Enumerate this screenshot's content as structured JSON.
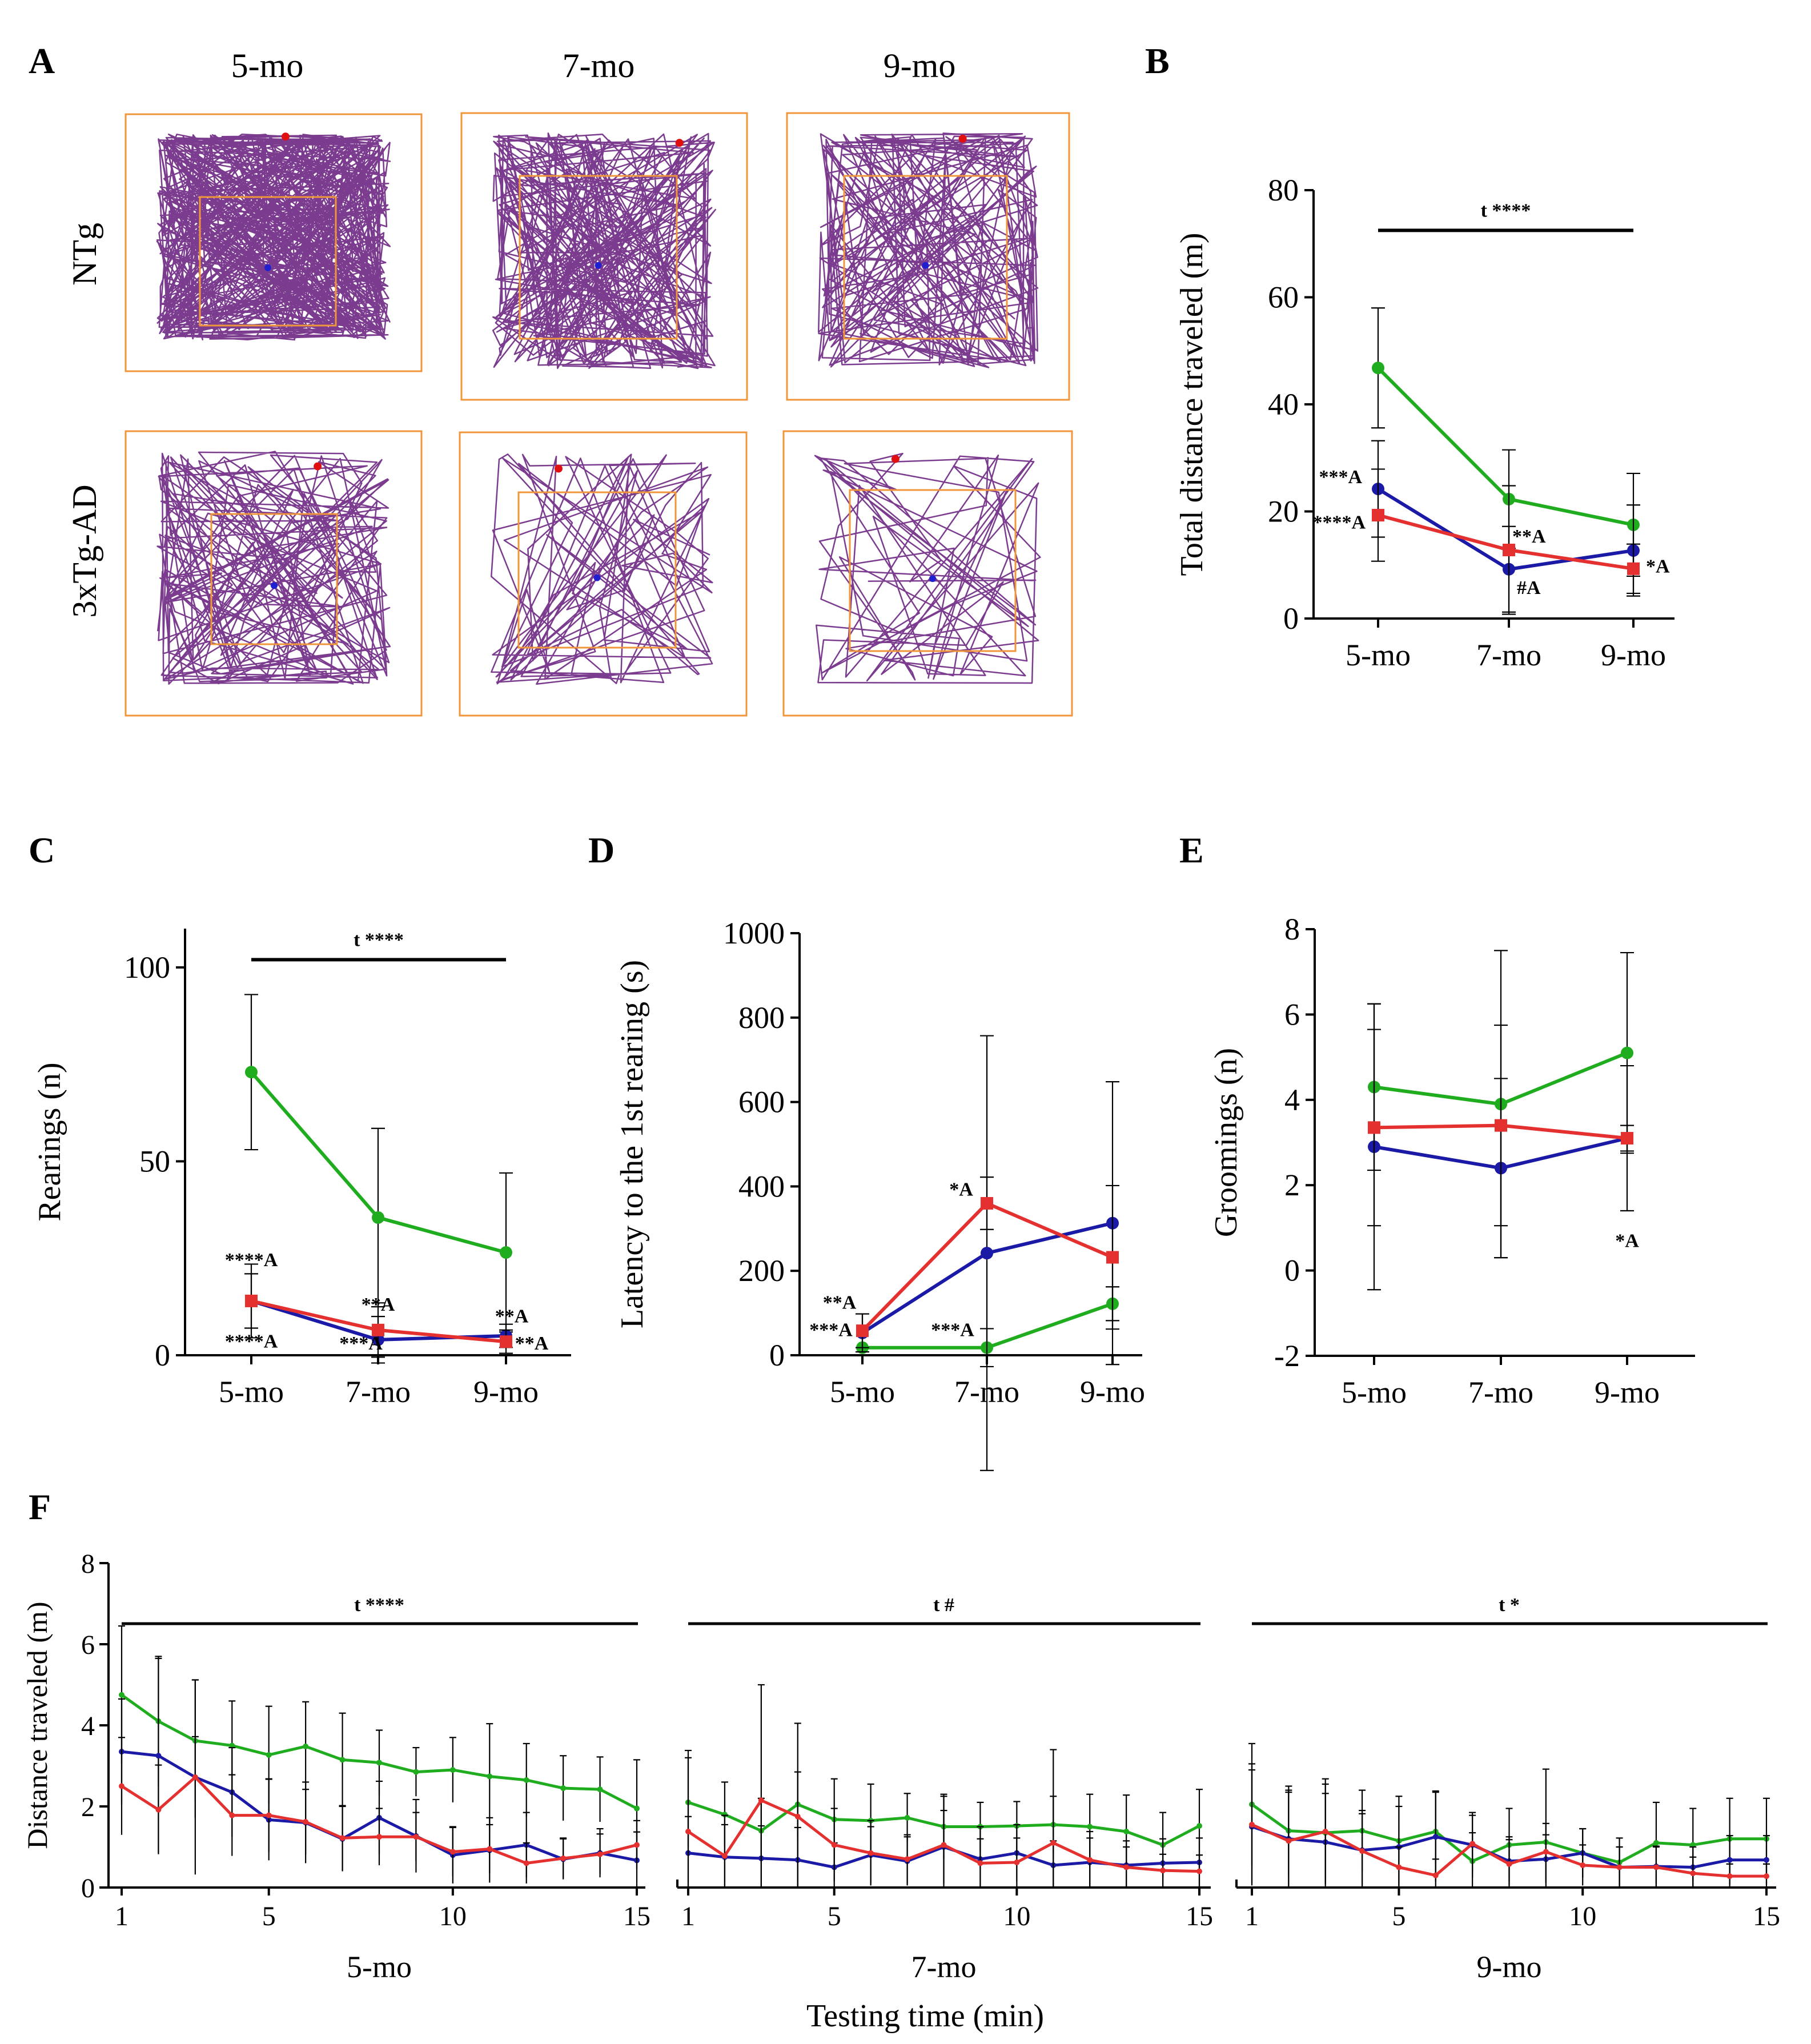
{
  "panel_labels": {
    "A": "A",
    "B": "B",
    "C": "C",
    "D": "D",
    "E": "E",
    "F": "F"
  },
  "colors": {
    "ntg": "#1fad1f",
    "blue_group": "#1a1aa6",
    "red_group": "#e53030",
    "track": "#7b3b8e",
    "arena": "#f0963a"
  },
  "panel_a": {
    "ages": [
      "5-mo",
      "7-mo",
      "9-mo"
    ],
    "groups": [
      "NTg",
      "3xTg-AD"
    ],
    "track_density": [
      [
        500,
        260,
        200
      ],
      [
        180,
        90,
        70
      ]
    ]
  },
  "chart_data": [
    {
      "id": "B",
      "type": "line",
      "title": "",
      "ylabel": "Total distance traveled (m)",
      "categories": [
        "5-mo",
        "7-mo",
        "9-mo"
      ],
      "ylim": [
        0,
        80
      ],
      "yticks": [
        "0",
        "20",
        "40",
        "60",
        "80"
      ],
      "series": [
        {
          "name": "NTg",
          "color": "#1fad1f",
          "marker": "circle",
          "values": [
            46.8,
            22.3,
            17.5
          ],
          "err": [
            11.2,
            9.2,
            9.6
          ]
        },
        {
          "name": "blue",
          "color": "#1a1aa6",
          "marker": "circle",
          "values": [
            24.2,
            9.2,
            12.7
          ],
          "err": [
            9.0,
            8.0,
            8.5
          ]
        },
        {
          "name": "red",
          "color": "#e53030",
          "marker": "square",
          "values": [
            19.3,
            12.8,
            9.3
          ],
          "err": [
            8.6,
            12.0,
            4.6
          ]
        }
      ],
      "bracket": {
        "label": "t ****",
        "from": 0,
        "to": 2,
        "y": 72.5
      },
      "annotations": [
        {
          "text": "***A",
          "cat": 0,
          "y": 25.3,
          "dx": -28,
          "anchor": "end"
        },
        {
          "text": "****A",
          "cat": 0,
          "y": 16.8,
          "dx": -22,
          "anchor": "end"
        },
        {
          "text": "**A",
          "cat": 1,
          "y": 14.2,
          "dx": 6,
          "anchor": "start"
        },
        {
          "text": "#A",
          "cat": 1,
          "y": 4.6,
          "dx": 14,
          "anchor": "start"
        },
        {
          "text": "*A",
          "cat": 2,
          "y": 8.6,
          "dx": 22,
          "anchor": "start"
        }
      ]
    },
    {
      "id": "C",
      "type": "line",
      "title": "",
      "ylabel": "Rearings (n)",
      "categories": [
        "5-mo",
        "7-mo",
        "9-mo"
      ],
      "ylim": [
        0,
        110
      ],
      "yticks": [
        "0",
        "50",
        "100"
      ],
      "series": [
        {
          "name": "NTg",
          "color": "#1fad1f",
          "marker": "circle",
          "values": [
            73,
            35.5,
            26.5
          ],
          "err": [
            20,
            23,
            20.5
          ]
        },
        {
          "name": "blue",
          "color": "#1a1aa6",
          "marker": "circle",
          "values": [
            14,
            4,
            5
          ],
          "err": [
            9.5,
            6,
            3
          ]
        },
        {
          "name": "red",
          "color": "#e53030",
          "marker": "square",
          "values": [
            14,
            6.5,
            3.5
          ],
          "err": [
            7,
            7,
            3
          ]
        }
      ],
      "bracket": {
        "label": "t ****",
        "from": 0,
        "to": 2,
        "y": 102
      },
      "annotations": [
        {
          "text": "****A",
          "cat": 0,
          "y": 23,
          "dx": 0,
          "anchor": "middle"
        },
        {
          "text": "****A",
          "cat": 0,
          "y": 2,
          "dx": 0,
          "anchor": "middle"
        },
        {
          "text": "**A",
          "cat": 1,
          "y": 11.5,
          "dx": 0,
          "anchor": "middle"
        },
        {
          "text": "***A",
          "cat": 1,
          "y": 1.5,
          "dx": -30,
          "anchor": "middle"
        },
        {
          "text": "**A",
          "cat": 2,
          "y": 8.5,
          "dx": 10,
          "anchor": "middle"
        },
        {
          "text": "**A",
          "cat": 2,
          "y": 1.5,
          "dx": 45,
          "anchor": "middle"
        }
      ]
    },
    {
      "id": "D",
      "type": "line",
      "title": "",
      "ylabel": "Latency to the 1st rearing (s)",
      "categories": [
        "5-mo",
        "7-mo",
        "9-mo"
      ],
      "ylim": [
        0,
        1000
      ],
      "yticks": [
        "0",
        "200",
        "400",
        "600",
        "800",
        "1000"
      ],
      "series": [
        {
          "name": "NTg",
          "color": "#1fad1f",
          "marker": "circle",
          "values": [
            18,
            18,
            122
          ],
          "err": [
            0,
            45,
            40
          ]
        },
        {
          "name": "blue",
          "color": "#1a1aa6",
          "marker": "circle",
          "values": [
            53,
            242,
            313
          ],
          "err": [
            45,
            515,
            335
          ]
        },
        {
          "name": "red",
          "color": "#e53030",
          "marker": "square",
          "values": [
            58,
            360,
            232
          ],
          "err": [
            40,
            62,
            170
          ]
        }
      ],
      "annotations": [
        {
          "text": "**A",
          "cat": 0,
          "y": 110,
          "dx": -40,
          "anchor": "middle"
        },
        {
          "text": "***A",
          "cat": 0,
          "y": 45,
          "dx": -55,
          "anchor": "middle"
        },
        {
          "text": "*A",
          "cat": 1,
          "y": 378,
          "dx": -45,
          "anchor": "middle"
        },
        {
          "text": "***A",
          "cat": 1,
          "y": 45,
          "dx": -60,
          "anchor": "middle"
        }
      ]
    },
    {
      "id": "E",
      "type": "line",
      "title": "",
      "ylabel": "Groomings (n)",
      "categories": [
        "5-mo",
        "7-mo",
        "9-mo"
      ],
      "ylim": [
        -2,
        8
      ],
      "yticks": [
        "-2",
        "0",
        "2",
        "4",
        "6",
        "8"
      ],
      "series": [
        {
          "name": "NTg",
          "color": "#1fad1f",
          "marker": "circle",
          "values": [
            4.3,
            3.9,
            5.1
          ],
          "err": [
            1.95,
            3.6,
            2.35
          ]
        },
        {
          "name": "blue",
          "color": "#1a1aa6",
          "marker": "circle",
          "values": [
            2.9,
            2.4,
            3.1
          ],
          "err": [
            3.35,
            2.1,
            1.7
          ]
        },
        {
          "name": "red",
          "color": "#e53030",
          "marker": "square",
          "values": [
            3.35,
            3.4,
            3.1
          ],
          "err": [
            2.3,
            2.35,
            0.3
          ]
        }
      ],
      "annotations": [
        {
          "text": "*A",
          "cat": 2,
          "y": 0.55,
          "dx": 0,
          "anchor": "middle"
        }
      ]
    },
    {
      "id": "F",
      "type": "line",
      "ylabel": "Distance traveled (m)",
      "xlabel": "Testing time (min)",
      "ylim": [
        0,
        8
      ],
      "yticks": [
        "0",
        "2",
        "4",
        "6",
        "8"
      ],
      "xticks": [
        "1",
        "5",
        "10",
        "15"
      ],
      "subplots": [
        {
          "title": "5-mo",
          "bracket_label": "t ****",
          "x": [
            1,
            2,
            3,
            4,
            5,
            6,
            7,
            8,
            9,
            10,
            11,
            12,
            13,
            14,
            15
          ],
          "series": [
            {
              "name": "NTg",
              "color": "#1fad1f",
              "values": [
                4.75,
                4.1,
                3.62,
                3.5,
                3.27,
                3.48,
                3.15,
                3.08,
                2.85,
                2.9,
                2.74,
                2.65,
                2.45,
                2.42,
                1.95
              ],
              "err": [
                1.7,
                1.6,
                1.5,
                1.1,
                1.2,
                1.1,
                1.15,
                0.8,
                0.6,
                0.8,
                1.3,
                0.9,
                0.8,
                0.8,
                1.2
              ]
            },
            {
              "name": "blue",
              "color": "#1a1aa6",
              "values": [
                3.35,
                3.25,
                2.72,
                2.35,
                1.67,
                1.6,
                1.2,
                1.72,
                1.27,
                0.8,
                0.92,
                1.05,
                0.7,
                0.85,
                0.67
              ],
              "err": [
                1.3,
                2.4,
                2.4,
                1.1,
                1.0,
                1.0,
                0.8,
                0.9,
                0.9,
                0.7,
                0.8,
                0.8,
                0.5,
                0.6,
                0.7
              ]
            },
            {
              "name": "red",
              "color": "#e53030",
              "values": [
                2.5,
                1.92,
                2.72,
                1.78,
                1.78,
                1.62,
                1.22,
                1.25,
                1.25,
                0.88,
                0.95,
                0.6,
                0.72,
                0.82,
                1.05
              ],
              "err": [
                1.2,
                1.1,
                1.0,
                1.0,
                0.9,
                0.8,
                0.8,
                0.7,
                0.6,
                0.6,
                0.6,
                0.5,
                0.5,
                0.5,
                0.6
              ]
            }
          ]
        },
        {
          "title": "7-mo",
          "bracket_label": "t #",
          "x": [
            1,
            2,
            3,
            4,
            5,
            6,
            7,
            8,
            9,
            10,
            11,
            12,
            13,
            14,
            15
          ],
          "series": [
            {
              "name": "NTg",
              "color": "#1fad1f",
              "values": [
                2.1,
                1.8,
                1.4,
                2.05,
                1.68,
                1.65,
                1.72,
                1.5,
                1.5,
                1.52,
                1.55,
                1.5,
                1.38,
                1.05,
                1.52
              ],
              "err": [
                1.1,
                0.8,
                0.8,
                0.8,
                1.0,
                0.9,
                0.6,
                0.8,
                0.6,
                0.6,
                0.7,
                0.8,
                0.9,
                0.8,
                0.9
              ]
            },
            {
              "name": "blue",
              "color": "#1a1aa6",
              "values": [
                0.85,
                0.75,
                0.72,
                0.68,
                0.5,
                0.8,
                0.65,
                1.0,
                0.7,
                0.85,
                0.55,
                0.62,
                0.55,
                0.6,
                0.62
              ],
              "err": [
                0.9,
                0.8,
                0.8,
                0.8,
                0.6,
                0.7,
                0.6,
                0.9,
                0.8,
                0.7,
                0.6,
                0.6,
                0.6,
                0.6,
                0.6
              ]
            },
            {
              "name": "red",
              "color": "#e53030",
              "values": [
                1.38,
                0.78,
                2.15,
                1.75,
                1.05,
                0.85,
                0.7,
                1.05,
                0.6,
                0.62,
                1.1,
                0.68,
                0.5,
                0.42,
                0.4
              ],
              "err": [
                2.0,
                1.0,
                2.85,
                2.3,
                0.9,
                0.8,
                0.6,
                1.2,
                0.6,
                0.6,
                2.3,
                0.7,
                0.5,
                0.4,
                0.4
              ]
            }
          ]
        },
        {
          "title": "9-mo",
          "bracket_label": "t *",
          "x": [
            1,
            2,
            3,
            4,
            5,
            6,
            7,
            8,
            9,
            10,
            11,
            12,
            13,
            14,
            15
          ],
          "series": [
            {
              "name": "NTg",
              "color": "#1fad1f",
              "values": [
                2.05,
                1.4,
                1.35,
                1.4,
                1.15,
                1.38,
                0.65,
                1.05,
                1.12,
                0.85,
                0.62,
                1.1,
                1.05,
                1.2,
                1.2
              ],
              "err": [
                1.5,
                1.1,
                1.2,
                1.0,
                1.1,
                1.0,
                0.7,
                0.9,
                1.8,
                0.6,
                0.6,
                1.0,
                0.9,
                1.0,
                1.0
              ]
            },
            {
              "name": "blue",
              "color": "#1a1aa6",
              "values": [
                1.5,
                1.2,
                1.12,
                0.92,
                1.0,
                1.25,
                1.05,
                0.65,
                0.7,
                0.85,
                0.5,
                0.52,
                0.5,
                0.68,
                0.68
              ],
              "err": [
                1.4,
                1.2,
                1.2,
                0.9,
                1.0,
                1.1,
                0.8,
                0.6,
                0.6,
                0.6,
                0.5,
                0.5,
                0.5,
                0.6,
                0.6
              ]
            },
            {
              "name": "red",
              "color": "#e53030",
              "values": [
                1.55,
                1.15,
                1.38,
                0.9,
                0.5,
                0.3,
                1.08,
                0.58,
                0.88,
                0.55,
                0.5,
                0.5,
                0.35,
                0.28,
                0.28
              ],
              "err": [
                1.5,
                1.2,
                1.3,
                1.0,
                0.5,
                0.4,
                0.7,
                0.6,
                0.7,
                0.5,
                0.5,
                0.5,
                0.4,
                0.3,
                0.3
              ]
            }
          ]
        }
      ]
    }
  ]
}
